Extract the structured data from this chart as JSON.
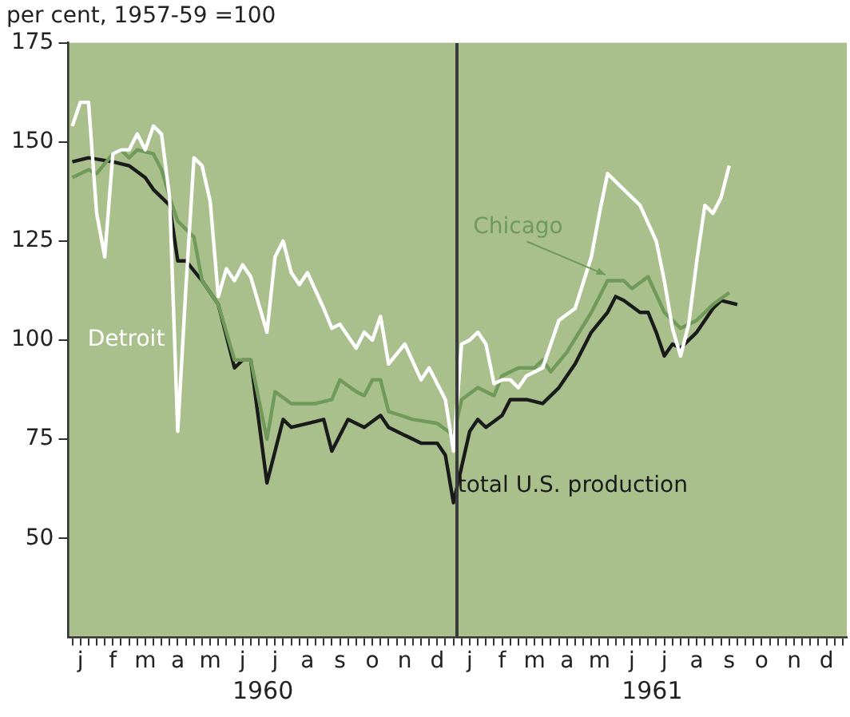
{
  "chart_data": {
    "type": "line",
    "ylabel": "per cent, 1957-59 =100",
    "categories": [
      null,
      "j",
      null,
      null,
      null,
      "f",
      null,
      null,
      null,
      "m",
      null,
      null,
      null,
      "a",
      null,
      null,
      null,
      "m",
      null,
      null,
      null,
      "j",
      null,
      null,
      null,
      "j",
      null,
      null,
      null,
      "a",
      null,
      null,
      null,
      "s",
      null,
      null,
      null,
      "o",
      null,
      null,
      null,
      "n",
      null,
      null,
      null,
      "d",
      null,
      null,
      null,
      "j",
      null,
      null,
      null,
      "f",
      null,
      null,
      null,
      "m",
      null,
      null,
      null,
      "a",
      null,
      null,
      null,
      "m",
      null,
      null,
      null,
      "j",
      null,
      null,
      null,
      "j",
      null,
      null,
      null,
      "a",
      null,
      null,
      null,
      "s",
      null,
      null,
      null,
      "o",
      null,
      null,
      null,
      "n",
      null,
      null,
      null,
      "d",
      null,
      null
    ],
    "ylim": [
      25,
      175
    ],
    "yticks": [
      50,
      75,
      100,
      125,
      150,
      175
    ],
    "grid": false,
    "legend": false,
    "annotations": [
      "1960",
      "1961"
    ],
    "series": [
      {
        "name": "Detroit",
        "color": "#ffffff",
        "values": [
          154,
          160,
          160,
          132,
          121,
          147,
          148,
          148,
          152,
          148,
          154,
          152,
          136,
          77,
          113,
          146,
          144,
          135,
          111,
          118,
          115,
          119,
          116,
          null,
          102,
          121,
          125,
          117,
          114,
          117,
          null,
          108,
          103,
          104,
          null,
          98,
          102,
          100,
          106,
          94,
          null,
          99,
          null,
          90,
          93,
          null,
          85,
          72,
          99,
          100,
          102,
          99,
          89,
          90,
          90,
          88,
          91,
          null,
          93,
          99,
          105,
          null,
          108,
          null,
          121,
          132,
          142,
          null,
          138,
          null,
          134,
          null,
          125,
          115,
          103,
          96,
          104,
          120,
          134,
          132,
          136,
          144,
          null,
          null,
          null,
          null,
          null,
          null,
          null,
          null,
          null,
          null,
          null,
          null,
          null,
          null
        ]
      },
      {
        "name": "Chicago",
        "color": "#6f9a5a",
        "values": [
          141,
          null,
          143,
          142,
          null,
          147,
          148,
          146,
          148,
          null,
          147,
          143,
          136,
          130,
          null,
          126,
          115,
          null,
          109,
          102,
          95,
          null,
          95,
          null,
          75,
          87,
          null,
          84,
          null,
          null,
          84,
          null,
          85,
          90,
          null,
          87,
          86,
          90,
          90,
          82,
          null,
          null,
          80,
          null,
          null,
          79,
          null,
          76,
          85,
          null,
          88,
          null,
          86,
          91,
          null,
          93,
          null,
          93,
          95,
          92,
          null,
          97,
          null,
          null,
          107,
          null,
          115,
          null,
          115,
          113,
          null,
          116,
          null,
          107,
          null,
          103,
          null,
          105,
          null,
          109,
          null,
          112,
          null,
          null,
          null,
          null,
          null,
          null,
          null,
          null,
          null,
          null,
          null,
          null,
          null,
          null
        ]
      },
      {
        "name": "total U.S. production",
        "color": "#1a1a1a",
        "values": [
          145,
          null,
          146,
          null,
          null,
          145,
          null,
          144,
          null,
          141,
          138,
          null,
          134,
          120,
          120,
          null,
          115,
          null,
          109,
          null,
          93,
          95,
          95,
          null,
          64,
          null,
          80,
          78,
          null,
          79,
          null,
          80,
          72,
          null,
          80,
          null,
          78,
          null,
          81,
          78,
          null,
          76,
          null,
          74,
          null,
          74,
          71,
          59,
          null,
          77,
          80,
          78,
          null,
          81,
          85,
          null,
          85,
          null,
          84,
          null,
          88,
          null,
          94,
          null,
          102,
          null,
          107,
          111,
          110,
          null,
          107,
          107,
          102,
          96,
          99,
          98,
          null,
          102,
          null,
          108,
          110,
          null,
          109,
          null,
          null,
          null,
          null,
          null,
          null,
          null,
          null,
          null,
          null,
          null,
          null,
          null
        ]
      }
    ]
  }
}
